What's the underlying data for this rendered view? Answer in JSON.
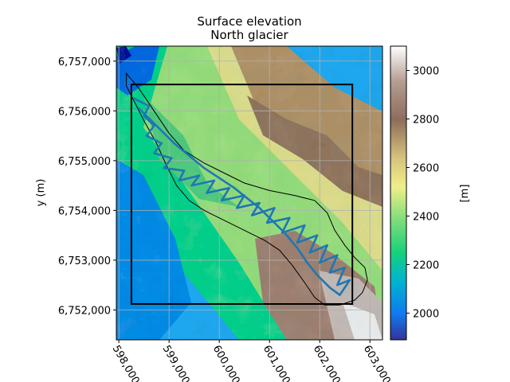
{
  "chart_data": {
    "type": "heatmap",
    "title": "Surface elevation",
    "subtitle": "North glacier",
    "xlabel": "",
    "ylabel": "y (m)",
    "xlim": [
      597950,
      603250
    ],
    "ylim": [
      6751400,
      6757300
    ],
    "x_ticks": [
      598000,
      599000,
      600000,
      601000,
      602000,
      603000
    ],
    "x_tick_labels": [
      "598,000",
      "599,000",
      "600,000",
      "601,000",
      "602,000",
      "603,000"
    ],
    "y_ticks": [
      6752000,
      6753000,
      6754000,
      6755000,
      6756000,
      6757000
    ],
    "y_tick_labels": [
      "6,752,000",
      "6,753,000",
      "6,754,000",
      "6,755,000",
      "6,756,000",
      "6,757,000"
    ],
    "grid": true,
    "colorbar": {
      "label": "[m]",
      "range": [
        1890,
        3100
      ],
      "ticks": [
        2000,
        2200,
        2400,
        2600,
        2800,
        3000
      ],
      "tick_labels": [
        "2000",
        "2200",
        "2400",
        "2600",
        "2800",
        "3000"
      ],
      "colormap": "terrain"
    },
    "bounding_box": {
      "x": [
        598250,
        602650
      ],
      "y": [
        6752120,
        6756530
      ],
      "color": "#000000"
    },
    "glacier_outline": {
      "color": "#000000",
      "points": [
        [
          598150,
          6756750
        ],
        [
          598400,
          6756450
        ],
        [
          598700,
          6756000
        ],
        [
          599000,
          6755550
        ],
        [
          599300,
          6755200
        ],
        [
          599700,
          6754950
        ],
        [
          600100,
          6754750
        ],
        [
          600500,
          6754550
        ],
        [
          601000,
          6754400
        ],
        [
          601500,
          6754300
        ],
        [
          601900,
          6754200
        ],
        [
          602150,
          6753950
        ],
        [
          602300,
          6753600
        ],
        [
          602500,
          6753300
        ],
        [
          602700,
          6753050
        ],
        [
          602900,
          6752850
        ],
        [
          602950,
          6752600
        ],
        [
          602850,
          6752350
        ],
        [
          602700,
          6752200
        ],
        [
          602400,
          6752100
        ],
        [
          602100,
          6752100
        ],
        [
          601900,
          6752250
        ],
        [
          601700,
          6752550
        ],
        [
          601450,
          6752900
        ],
        [
          601200,
          6753200
        ],
        [
          600900,
          6753400
        ],
        [
          600500,
          6753600
        ],
        [
          600100,
          6753800
        ],
        [
          599700,
          6754000
        ],
        [
          599400,
          6754200
        ],
        [
          599150,
          6754500
        ],
        [
          598950,
          6754900
        ],
        [
          598750,
          6755350
        ],
        [
          598500,
          6755800
        ],
        [
          598300,
          6756200
        ],
        [
          598150,
          6756500
        ],
        [
          598150,
          6756750
        ]
      ]
    },
    "flight_track": {
      "color": "#1f77b4",
      "points": [
        [
          598300,
          6756250
        ],
        [
          598600,
          6756100
        ],
        [
          598500,
          6755900
        ],
        [
          598700,
          6755700
        ],
        [
          598550,
          6755500
        ],
        [
          598850,
          6755350
        ],
        [
          598700,
          6755150
        ],
        [
          599050,
          6755050
        ],
        [
          598900,
          6754850
        ],
        [
          599300,
          6754800
        ],
        [
          599200,
          6754600
        ],
        [
          599600,
          6754700
        ],
        [
          599450,
          6754500
        ],
        [
          599900,
          6754600
        ],
        [
          599750,
          6754350
        ],
        [
          600200,
          6754450
        ],
        [
          600050,
          6754200
        ],
        [
          600500,
          6754300
        ],
        [
          600350,
          6754050
        ],
        [
          600800,
          6754150
        ],
        [
          600650,
          6753900
        ],
        [
          601100,
          6754050
        ],
        [
          600950,
          6753750
        ],
        [
          601400,
          6753850
        ],
        [
          601250,
          6753550
        ],
        [
          601700,
          6753700
        ],
        [
          601550,
          6753350
        ],
        [
          601950,
          6753500
        ],
        [
          601800,
          6753150
        ],
        [
          602150,
          6753300
        ],
        [
          602000,
          6752950
        ],
        [
          602350,
          6753100
        ],
        [
          602200,
          6752750
        ],
        [
          602500,
          6752850
        ],
        [
          602350,
          6752500
        ],
        [
          602600,
          6752600
        ],
        [
          602400,
          6752300
        ],
        [
          602200,
          6752450
        ],
        [
          601950,
          6752700
        ],
        [
          601750,
          6752950
        ],
        [
          601550,
          6753250
        ],
        [
          601300,
          6753550
        ],
        [
          601050,
          6753800
        ],
        [
          600800,
          6754050
        ],
        [
          600550,
          6754250
        ],
        [
          600300,
          6754450
        ],
        [
          600000,
          6754650
        ],
        [
          599700,
          6754850
        ],
        [
          599400,
          6755100
        ],
        [
          599100,
          6755350
        ],
        [
          598850,
          6755600
        ],
        [
          598600,
          6755850
        ],
        [
          598400,
          6756050
        ]
      ]
    }
  }
}
